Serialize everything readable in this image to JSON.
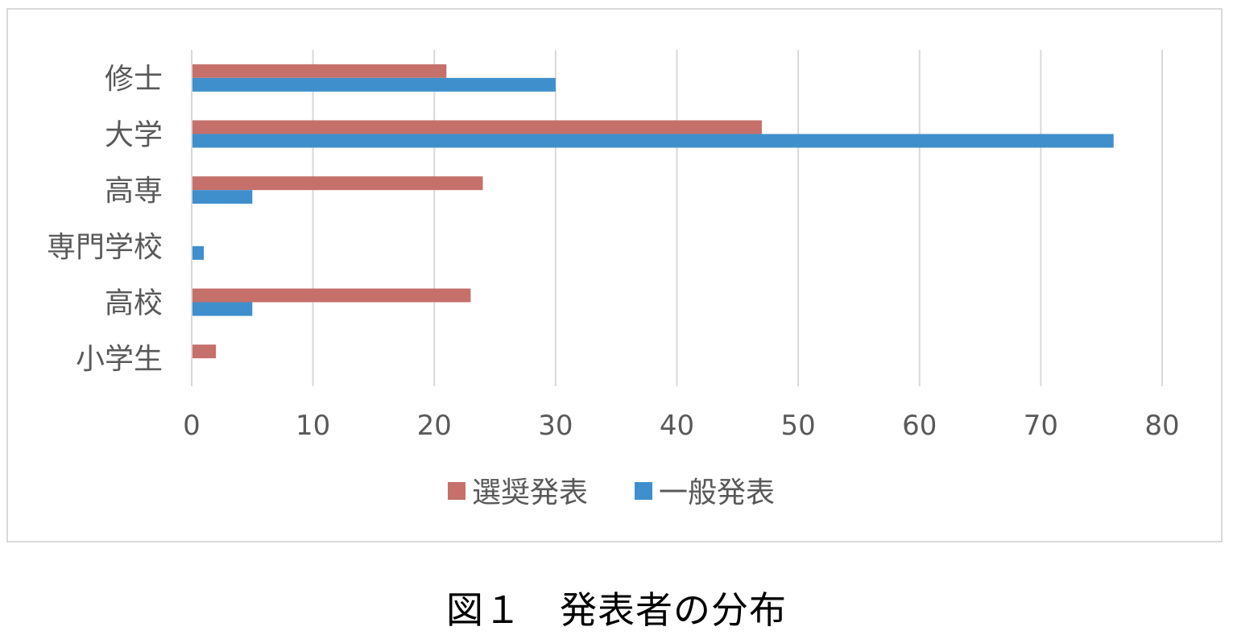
{
  "chart_data": {
    "type": "bar",
    "orientation": "horizontal",
    "categories": [
      "修士",
      "大学",
      "高専",
      "専門学校",
      "高校",
      "小学生"
    ],
    "series": [
      {
        "name": "選奨発表",
        "color": "#c5706b",
        "values": [
          21,
          47,
          24,
          0,
          23,
          2
        ]
      },
      {
        "name": "一般発表",
        "color": "#3f8fcc",
        "values": [
          30,
          76,
          5,
          1,
          5,
          0
        ]
      }
    ],
    "xlim": [
      0,
      80
    ],
    "xticks": [
      0,
      10,
      20,
      30,
      40,
      50,
      60,
      70,
      80
    ],
    "grid": true,
    "legend_position": "bottom"
  },
  "caption": "図１　発表者の分布"
}
